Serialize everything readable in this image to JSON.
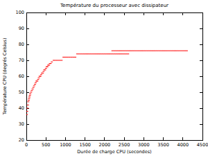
{
  "chart_data": {
    "type": "scatter",
    "title": "Température du processeur avec dissipateur",
    "x_label": "Durée de charge CPU (secondes)",
    "y_label": "Température CPU (degrés Celsius)",
    "x": [
      10,
      20,
      30,
      40,
      50,
      60,
      70,
      80,
      90,
      100,
      120,
      140,
      160,
      180,
      200,
      220,
      240,
      260,
      280,
      300,
      320,
      340,
      360,
      380,
      400,
      420,
      440,
      460,
      480,
      500,
      520,
      540,
      560,
      580,
      600,
      620,
      650,
      700,
      750,
      800,
      850,
      900,
      950,
      1000,
      1050,
      1100,
      1150,
      1200,
      1250,
      1300,
      1350,
      1400,
      1450,
      1500,
      1550,
      1600,
      1650,
      1700,
      1750,
      1800,
      1850,
      1900,
      1950,
      2000,
      2050,
      2100,
      2150,
      2200,
      2250,
      2300,
      2350,
      2400,
      2450,
      2500,
      2550,
      2600,
      2200,
      2250,
      2300,
      2350,
      2400,
      2450,
      2500,
      2550,
      2600,
      2650,
      2700,
      2750,
      2800,
      2850,
      2900,
      2950,
      3000,
      3050,
      3100,
      3150,
      3200,
      3250,
      3300,
      3350,
      3400,
      3450,
      3500,
      3550,
      3600,
      3650,
      3700,
      3750,
      3800,
      3850,
      3900,
      3950,
      4000,
      4050,
      4100
    ],
    "values": [
      36,
      38,
      40,
      42,
      44,
      45,
      46,
      47,
      48,
      49,
      50,
      51,
      52,
      53,
      54,
      55,
      56,
      57,
      57,
      58,
      59,
      60,
      60,
      61,
      62,
      62,
      63,
      64,
      64,
      65,
      66,
      66,
      67,
      67,
      68,
      68,
      69,
      70,
      70,
      70,
      70,
      70,
      72,
      72,
      72,
      72,
      72,
      72,
      72,
      74,
      74,
      74,
      74,
      74,
      74,
      74,
      74,
      74,
      74,
      74,
      74,
      74,
      74,
      74,
      74,
      74,
      74,
      74,
      74,
      74,
      74,
      74,
      74,
      74,
      74,
      74,
      76,
      76,
      76,
      76,
      76,
      76,
      76,
      76,
      76,
      76,
      76,
      76,
      76,
      76,
      76,
      76,
      76,
      76,
      76,
      76,
      76,
      76,
      76,
      76,
      76,
      76,
      76,
      76,
      76,
      76,
      76,
      76,
      76,
      76,
      76,
      76,
      76,
      76,
      76
    ],
    "color": "#ff0000",
    "marker": "dash",
    "xlim": [
      0,
      4500
    ],
    "xticks": [
      0,
      500,
      1000,
      1500,
      2000,
      2500,
      3000,
      3500,
      4000,
      4500
    ],
    "ylim": [
      20,
      100
    ],
    "yticks": [
      20,
      30,
      40,
      50,
      60,
      70,
      80,
      90,
      100
    ],
    "grid": false
  }
}
